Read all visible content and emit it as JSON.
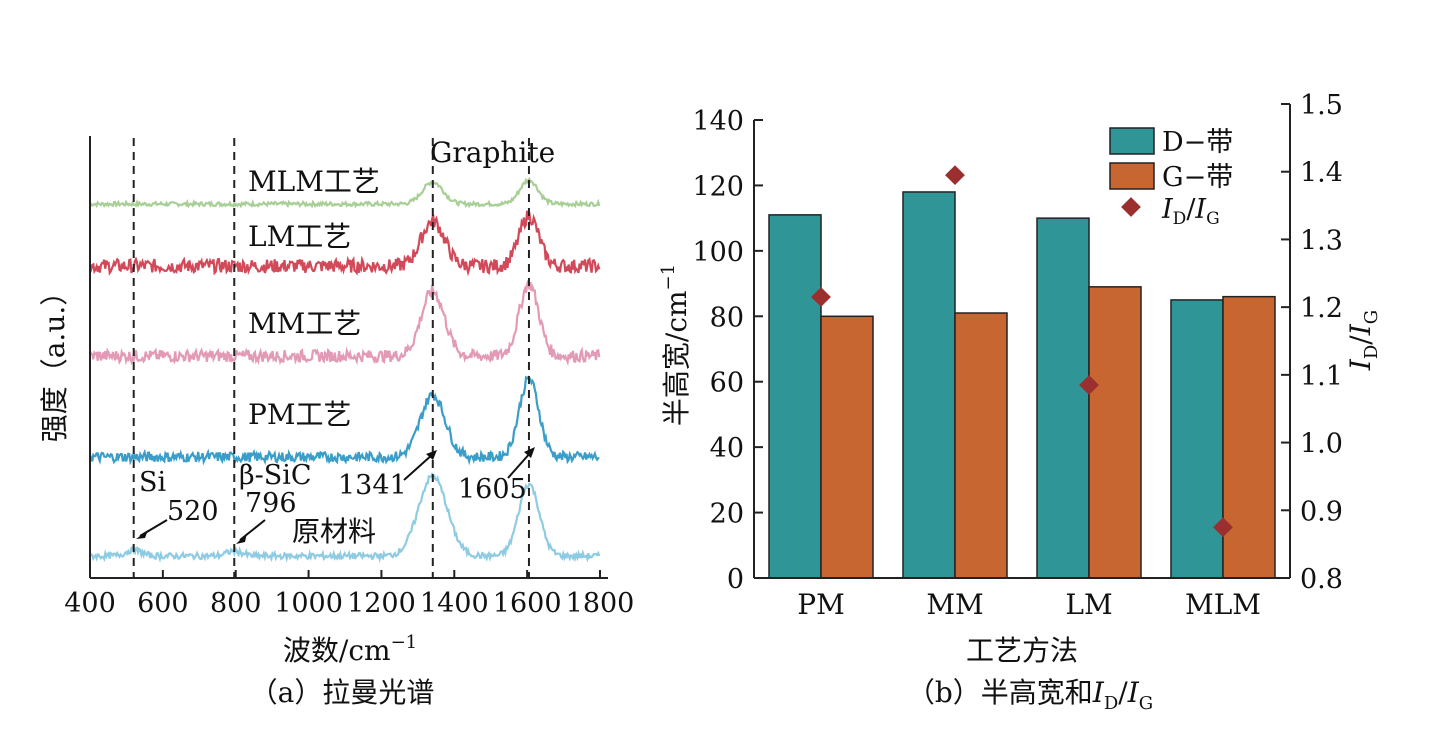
{
  "chart_data": [
    {
      "type": "line",
      "caption": "（a）拉曼光谱",
      "xlabel": "波数/cm",
      "xlabel_sup": "−1",
      "ylabel": "强度（a.u.）",
      "xlim": [
        400,
        1800
      ],
      "xticks": [
        "400",
        "600",
        "800",
        "1000",
        "1200",
        "1400",
        "1600",
        "1800"
      ],
      "series": [
        {
          "name": "MLM工艺",
          "color": "#a8cf96",
          "noise": 2,
          "peaks": [
            {
              "x": 1341,
              "h": 22,
              "w": 40
            },
            {
              "x": 1605,
              "h": 24,
              "w": 35
            }
          ]
        },
        {
          "name": "LM工艺",
          "color": "#d24a5a",
          "noise": 7,
          "peaks": [
            {
              "x": 1341,
              "h": 45,
              "w": 45
            },
            {
              "x": 1605,
              "h": 50,
              "w": 38
            }
          ]
        },
        {
          "name": "MM工艺",
          "color": "#e29ab6",
          "noise": 6,
          "peaks": [
            {
              "x": 1341,
              "h": 65,
              "w": 45
            },
            {
              "x": 1605,
              "h": 72,
              "w": 38
            }
          ]
        },
        {
          "name": "PM工艺",
          "color": "#3a9ec9",
          "noise": 5,
          "peaks": [
            {
              "x": 1341,
              "h": 62,
              "w": 48
            },
            {
              "x": 1605,
              "h": 78,
              "w": 38
            }
          ]
        },
        {
          "name": "原材料",
          "color": "#8fcbe2",
          "noise": 3,
          "peaks": [
            {
              "x": 520,
              "h": 6,
              "w": 30
            },
            {
              "x": 796,
              "h": 5,
              "w": 30
            },
            {
              "x": 1341,
              "h": 80,
              "w": 55
            },
            {
              "x": 1605,
              "h": 72,
              "w": 40
            }
          ]
        }
      ],
      "reference_lines": [
        520,
        796,
        1341,
        1605
      ],
      "annotations": {
        "graphite": "Graphite",
        "si": "Si",
        "si_value": "520",
        "sic": "β-SiC",
        "sic_value": "796",
        "d_peak": "1341",
        "g_peak": "1605"
      }
    },
    {
      "type": "bar",
      "caption_prefix": "（b）半高宽和",
      "categories": [
        "PM",
        "MM",
        "LM",
        "MLM"
      ],
      "xlabel": "工艺方法",
      "ylabel": "半高宽/cm",
      "ylabel_sup": "−1",
      "ylim": [
        0,
        140
      ],
      "yticks": [
        "0",
        "20",
        "40",
        "60",
        "80",
        "100",
        "120",
        "140"
      ],
      "y2lim": [
        0.8,
        1.5
      ],
      "y2ticks": [
        "0.8",
        "0.9",
        "1.0",
        "1.1",
        "1.2",
        "1.3",
        "1.4",
        "1.5"
      ],
      "y2label": {
        "I": "I",
        "D": "D",
        "slash": "/",
        "G": "G"
      },
      "series": [
        {
          "name": "D−带",
          "color": "#2f9597",
          "values": [
            111,
            118,
            110,
            85
          ]
        },
        {
          "name": "G−带",
          "color": "#c76630",
          "values": [
            80,
            81,
            89,
            86
          ]
        }
      ],
      "ratio": {
        "color": "#9b2f2f",
        "values": [
          1.215,
          1.395,
          1.085,
          0.875
        ]
      },
      "legend": {
        "position": "top-right",
        "ratio_label": {
          "I": "I",
          "D": "D",
          "slash": "/",
          "G": "G"
        }
      }
    }
  ]
}
